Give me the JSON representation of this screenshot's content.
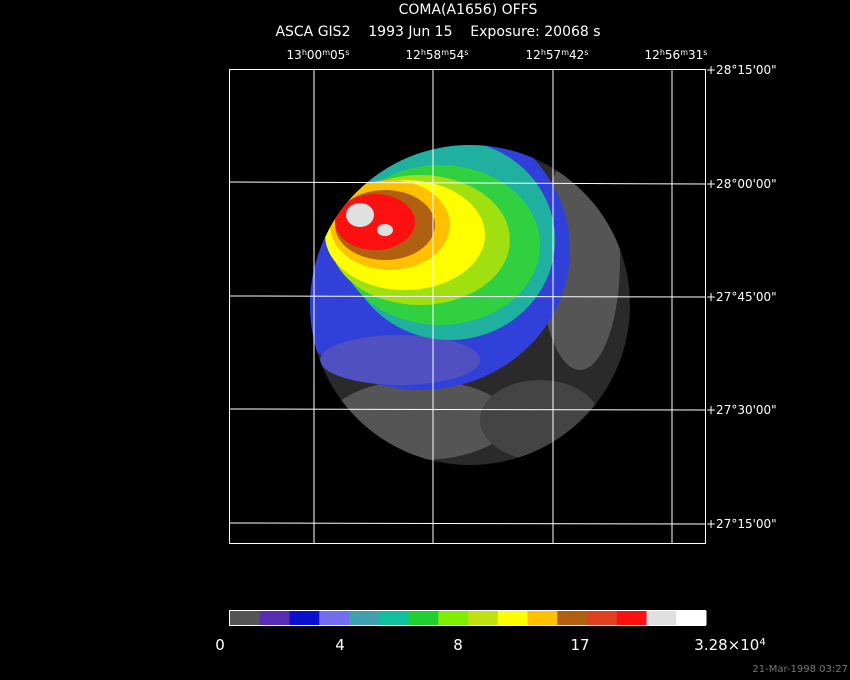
{
  "header": {
    "title": "COMA(A1656) OFFS",
    "subtitle": "ASCA GIS2    1993 Jun 15    Exposure: 20068 s"
  },
  "ra_labels": [
    [
      [
        "13",
        "h"
      ],
      [
        "00",
        "m"
      ],
      [
        "05",
        "s"
      ]
    ],
    [
      [
        "12",
        "h"
      ],
      [
        "58",
        "m"
      ],
      [
        "54",
        "s"
      ]
    ],
    [
      [
        "12",
        "h"
      ],
      [
        "57",
        "m"
      ],
      [
        "42",
        "s"
      ]
    ],
    [
      [
        "12",
        "h"
      ],
      [
        "56",
        "m"
      ],
      [
        "31",
        "s"
      ]
    ]
  ],
  "dec_labels": [
    "+28°15'00\"",
    "+28°00'00\"",
    "+27°45'00\"",
    "+27°30'00\"",
    "+27°15'00\""
  ],
  "colorbar": {
    "colors": [
      "#555555",
      "#5a2cb4",
      "#0a10d0",
      "#7070f0",
      "#40a0b0",
      "#10c0a0",
      "#20d030",
      "#80ee00",
      "#c0e010",
      "#ffff00",
      "#ffc000",
      "#b06010",
      "#e04020",
      "#ff1010",
      "#e0e0e0",
      "#ffffff"
    ],
    "labels": [
      "0",
      "4",
      "8",
      "17"
    ],
    "max_label": {
      "mantissa": "3.28×10",
      "exponent": "4"
    }
  },
  "footer": {
    "timestamp": "21-Mar-1998 03:27"
  }
}
